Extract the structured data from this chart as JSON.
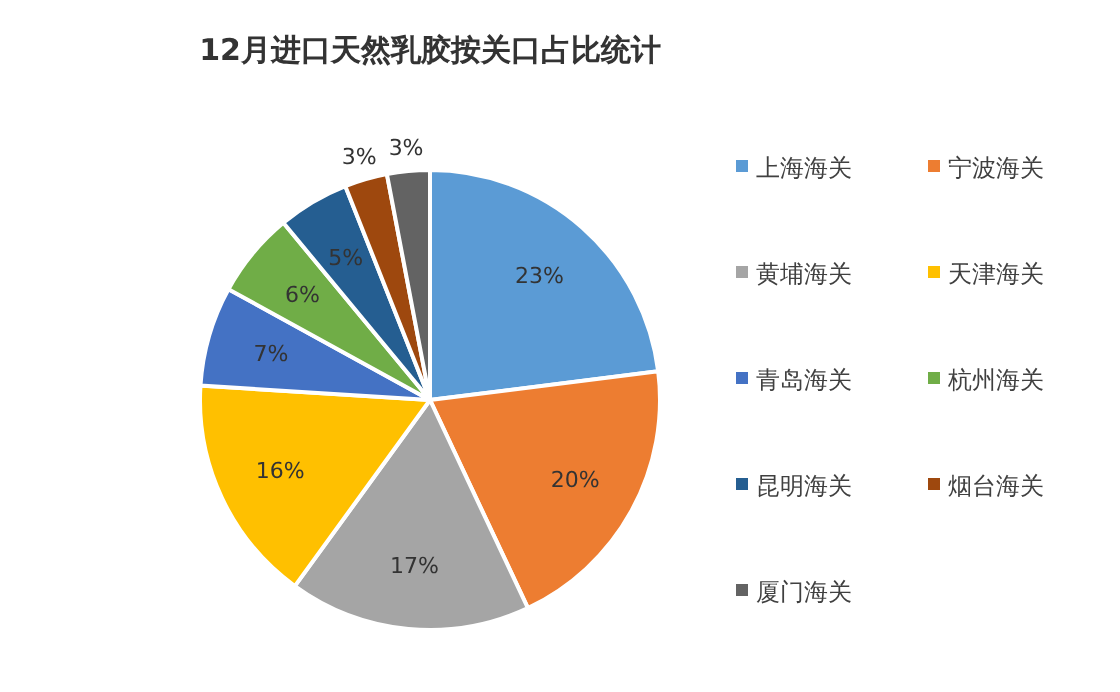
{
  "chart_data": {
    "type": "pie",
    "title": "12月进口天然乳胶按关口占比统计",
    "categories": [
      "上海海关",
      "宁波海关",
      "黄埔海关",
      "天津海关",
      "青岛海关",
      "杭州海关",
      "昆明海关",
      "烟台海关",
      "厦门海关"
    ],
    "values": [
      23,
      20,
      17,
      16,
      7,
      6,
      5,
      3,
      3
    ],
    "colors": [
      "#5b9bd5",
      "#ed7d31",
      "#a5a5a5",
      "#ffc000",
      "#4472c4",
      "#70ad47",
      "#255e91",
      "#9e480e",
      "#636363"
    ],
    "value_labels": [
      "23%",
      "20%",
      "17%",
      "16%",
      "7%",
      "6%",
      "5%",
      "3%",
      "3%"
    ],
    "legend": "right"
  }
}
